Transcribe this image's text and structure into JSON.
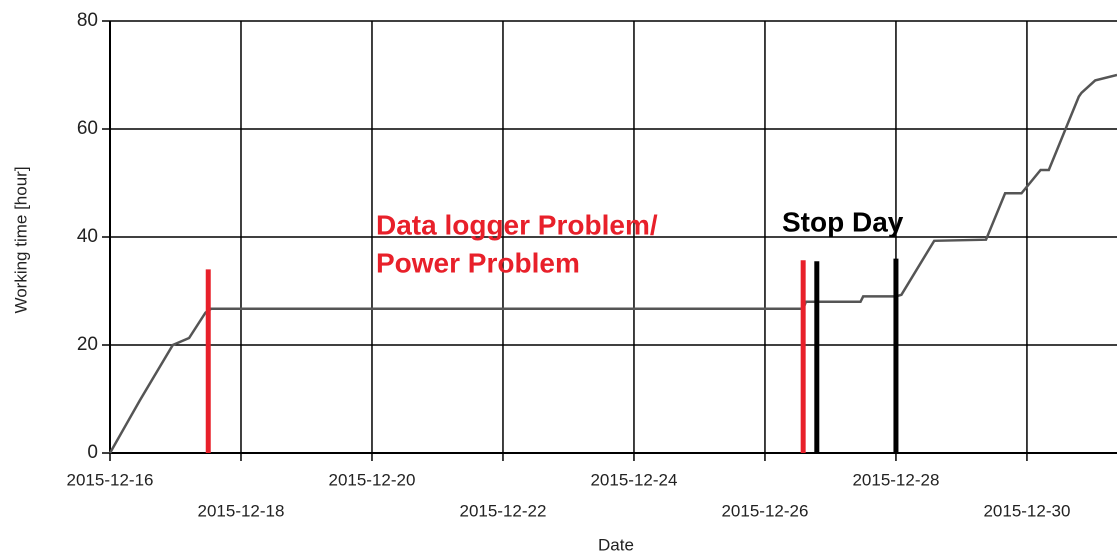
{
  "chart_data": {
    "type": "line",
    "x_label": "Date",
    "y_label": "Working time [hour]",
    "xlim": [
      "2015-12-16T00:00",
      "2015-12-31T09:00"
    ],
    "xticks": [
      "2015-12-16",
      "2015-12-18",
      "2015-12-20",
      "2015-12-22",
      "2015-12-24",
      "2015-12-26",
      "2015-12-28",
      "2015-12-30"
    ],
    "ylim": [
      0,
      80
    ],
    "yticks": [
      0,
      20,
      40,
      60,
      80
    ],
    "grid": true,
    "series": [
      {
        "color": "#555555",
        "x": [
          "2015-12-16T00:00",
          "2015-12-16T11:00",
          "2015-12-16T23:00",
          "2015-12-17T05:00",
          "2015-12-17T11:00",
          "2015-12-17T13:00",
          "2015-12-26T14:00",
          "2015-12-26T15:00",
          "2015-12-27T11:00",
          "2015-12-27T12:00",
          "2015-12-28T00:00",
          "2015-12-28T02:00",
          "2015-12-28T14:00",
          "2015-12-29T09:00",
          "2015-12-29T16:00",
          "2015-12-29T22:00",
          "2015-12-30T05:00",
          "2015-12-30T08:00",
          "2015-12-30T19:00",
          "2015-12-30T20:00",
          "2015-12-31T01:00",
          "2015-12-31T09:00"
        ],
        "values": [
          0,
          9.8,
          20,
          21.3,
          26,
          26.7,
          26.7,
          28,
          28,
          29,
          29,
          29.3,
          39.3,
          39.5,
          48.1,
          48.1,
          52.4,
          52.4,
          66,
          66.7,
          69,
          70
        ]
      }
    ],
    "markers": [
      {
        "x": "2015-12-17T12:00",
        "top": 34,
        "color": "#e8202a"
      },
      {
        "x": "2015-12-26T14:00",
        "top": 35.7,
        "color": "#e8202a"
      },
      {
        "x": "2015-12-26T19:00",
        "top": 35.5,
        "color": "#000000"
      },
      {
        "x": "2015-12-28T00:00",
        "top": 36,
        "color": "#000000"
      }
    ],
    "annotations": [
      {
        "text": "Data logger Problem/",
        "color": "#e8202a"
      },
      {
        "text": "Power Problem",
        "color": "#e8202a"
      },
      {
        "text": "Stop Day",
        "color": "#000000"
      }
    ]
  }
}
